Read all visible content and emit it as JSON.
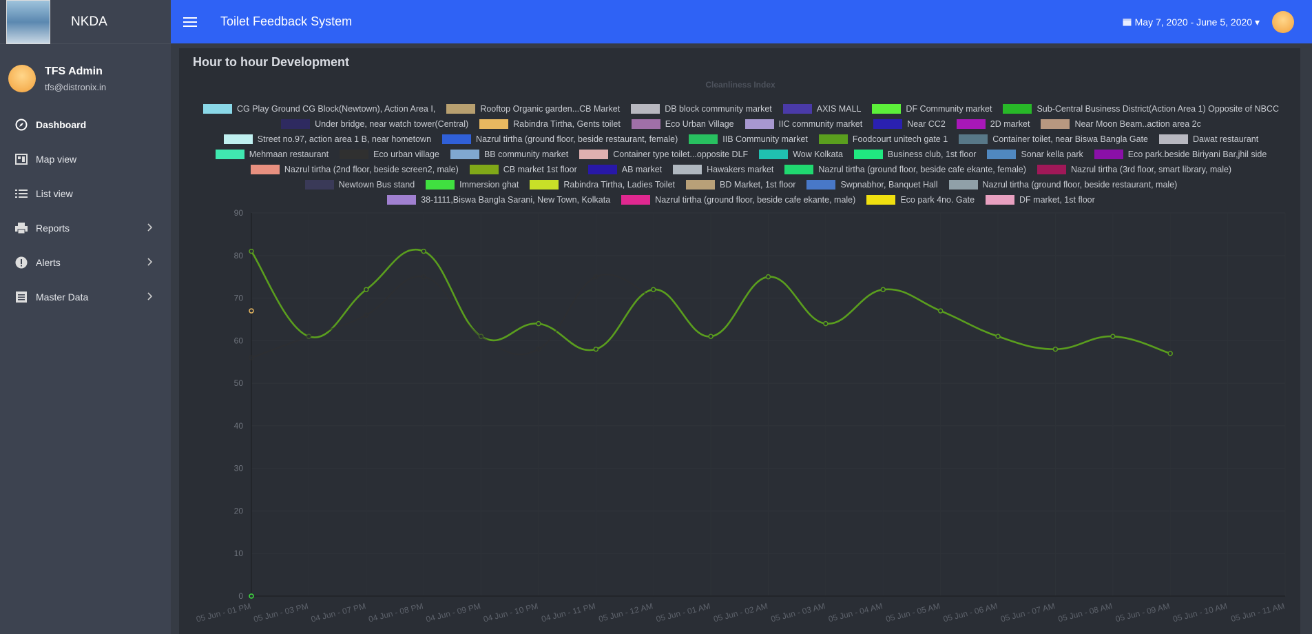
{
  "sidebar": {
    "brand": "NKDA",
    "user": {
      "name": "TFS Admin",
      "email": "tfs@distronix.in"
    },
    "nav": [
      "Dashboard",
      "Map view",
      "List view",
      "Reports",
      "Alerts",
      "Master Data"
    ]
  },
  "header": {
    "title": "Toilet Feedback System",
    "date_range": "May 7, 2020 - June 5, 2020"
  },
  "card": {
    "title": "Hour to hour Development"
  },
  "chart_data": {
    "type": "line",
    "title": "Cleanliness Index",
    "categories": [
      "05 Jun - 01 PM",
      "05 Jun - 03 PM",
      "04 Jun - 07 PM",
      "04 Jun - 08 PM",
      "04 Jun - 09 PM",
      "04 Jun - 10 PM",
      "04 Jun - 11 PM",
      "05 Jun - 12 AM",
      "05 Jun - 01 AM",
      "05 Jun - 02 AM",
      "05 Jun - 03 AM",
      "05 Jun - 04 AM",
      "05 Jun - 05 AM",
      "05 Jun - 06 AM",
      "05 Jun - 07 AM",
      "05 Jun - 08 AM",
      "05 Jun - 09 AM",
      "05 Jun - 10 AM",
      "05 Jun - 11 AM"
    ],
    "ylim": [
      0,
      90
    ],
    "yticks": [
      0,
      10,
      20,
      30,
      40,
      50,
      60,
      70,
      80,
      90
    ],
    "grid": true,
    "series": [
      {
        "name": "CG Play Ground CG Block(Newtown), Action Area I,",
        "color": "#8ad8e8",
        "values": [
          null,
          null,
          null,
          null,
          null,
          null,
          null,
          null,
          null,
          null,
          null,
          null,
          null,
          null,
          null,
          null,
          null,
          null,
          null
        ]
      },
      {
        "name": "Rooftop Organic garden...CB Market",
        "color": "#b8a070",
        "values": [
          null,
          null,
          null,
          null,
          null,
          null,
          null,
          null,
          null,
          null,
          null,
          null,
          null,
          null,
          null,
          null,
          null,
          null,
          null
        ]
      },
      {
        "name": "DB block community market",
        "color": "#b8b8c0",
        "values": [
          null,
          null,
          null,
          null,
          null,
          null,
          null,
          null,
          null,
          null,
          null,
          null,
          null,
          null,
          null,
          null,
          null,
          null,
          null
        ]
      },
      {
        "name": "AXIS MALL",
        "color": "#4a3aa8",
        "values": [
          null,
          null,
          null,
          null,
          null,
          null,
          null,
          null,
          null,
          null,
          null,
          null,
          null,
          null,
          null,
          null,
          null,
          null,
          null
        ]
      },
      {
        "name": "DF Community market",
        "color": "#5cf03a",
        "values": [
          null,
          null,
          null,
          null,
          null,
          null,
          null,
          null,
          null,
          null,
          null,
          null,
          null,
          null,
          null,
          null,
          null,
          null,
          null
        ]
      },
      {
        "name": "Sub-Central Business District(Action Area 1) Opposite of NBCC",
        "color": "#28b828",
        "values": [
          null,
          null,
          null,
          null,
          null,
          null,
          null,
          null,
          null,
          null,
          null,
          null,
          null,
          null,
          null,
          null,
          null,
          null,
          null
        ]
      },
      {
        "name": "Under bridge, near watch tower(Central)",
        "color": "#2e2a60",
        "values": [
          null,
          null,
          null,
          null,
          null,
          null,
          null,
          null,
          null,
          null,
          null,
          null,
          null,
          null,
          null,
          null,
          null,
          null,
          null
        ]
      },
      {
        "name": "Rabindra Tirtha, Gents toilet",
        "color": "#e8b860",
        "values": [
          67,
          null,
          null,
          null,
          null,
          null,
          null,
          null,
          null,
          null,
          null,
          null,
          null,
          null,
          null,
          null,
          null,
          null,
          null
        ]
      },
      {
        "name": "Eco Urban Village",
        "color": "#a070a8",
        "values": [
          null,
          null,
          null,
          null,
          null,
          null,
          null,
          null,
          null,
          null,
          null,
          null,
          null,
          null,
          null,
          null,
          null,
          null,
          null
        ]
      },
      {
        "name": "IIC community market",
        "color": "#a898d0",
        "values": [
          null,
          null,
          null,
          null,
          null,
          null,
          null,
          null,
          null,
          null,
          null,
          null,
          null,
          null,
          null,
          null,
          null,
          null,
          null
        ]
      },
      {
        "name": "Near CC2",
        "color": "#2a20b0",
        "values": [
          null,
          null,
          null,
          null,
          null,
          null,
          null,
          null,
          null,
          null,
          null,
          null,
          null,
          null,
          null,
          null,
          null,
          null,
          null
        ]
      },
      {
        "name": "2D market",
        "color": "#a818b8",
        "values": [
          null,
          null,
          null,
          null,
          null,
          null,
          null,
          null,
          null,
          null,
          null,
          null,
          null,
          null,
          null,
          null,
          null,
          null,
          null
        ]
      },
      {
        "name": "Near Moon Beam..action area 2c",
        "color": "#b89880",
        "values": [
          null,
          null,
          null,
          null,
          null,
          null,
          null,
          null,
          null,
          null,
          null,
          null,
          null,
          null,
          null,
          null,
          null,
          null,
          null
        ]
      },
      {
        "name": "Street no.97,  action area 1 B, near hometown",
        "color": "#c0f0f0",
        "values": [
          null,
          null,
          null,
          null,
          null,
          null,
          null,
          null,
          null,
          null,
          null,
          null,
          null,
          null,
          null,
          null,
          null,
          null,
          null
        ]
      },
      {
        "name": "Nazrul tirtha (ground floor, beside restaurant, female)",
        "color": "#3060d8",
        "values": [
          null,
          null,
          null,
          null,
          null,
          null,
          null,
          null,
          null,
          null,
          null,
          null,
          null,
          null,
          null,
          null,
          null,
          null,
          null
        ]
      },
      {
        "name": "IIB Community market",
        "color": "#28c060",
        "values": [
          null,
          null,
          null,
          null,
          null,
          null,
          null,
          null,
          null,
          null,
          null,
          null,
          null,
          null,
          null,
          null,
          null,
          null,
          null
        ]
      },
      {
        "name": "Foodcourt unitech gate 1",
        "color": "#5a9e1e",
        "values": [
          81,
          61,
          72,
          81,
          61,
          64,
          58,
          72,
          61,
          75,
          64,
          72,
          67,
          61,
          58,
          61,
          57,
          null,
          null
        ]
      },
      {
        "name": "Container toilet, near Biswa Bangla Gate",
        "color": "#587888",
        "values": [
          null,
          null,
          null,
          null,
          null,
          null,
          null,
          null,
          null,
          null,
          null,
          null,
          null,
          null,
          null,
          null,
          null,
          null,
          null
        ]
      },
      {
        "name": "Dawat restaurant",
        "color": "#b8b8c0",
        "values": [
          null,
          null,
          null,
          null,
          null,
          null,
          null,
          null,
          null,
          null,
          null,
          null,
          null,
          null,
          null,
          null,
          null,
          null,
          null
        ]
      },
      {
        "name": "Mehmaan restaurant",
        "color": "#40e8b0",
        "values": [
          null,
          null,
          null,
          null,
          null,
          null,
          null,
          null,
          null,
          null,
          null,
          null,
          null,
          null,
          null,
          null,
          null,
          null,
          null
        ]
      },
      {
        "name": "Eco urban village",
        "color": "#303030",
        "values": [
          56,
          61,
          66,
          75,
          61,
          58,
          75,
          70,
          null,
          null,
          null,
          null,
          null,
          null,
          null,
          null,
          null,
          null,
          null
        ]
      },
      {
        "name": "BB community market",
        "color": "#80a8d0",
        "values": [
          null,
          null,
          null,
          null,
          null,
          null,
          null,
          null,
          null,
          null,
          null,
          null,
          null,
          null,
          null,
          null,
          null,
          null,
          null
        ]
      },
      {
        "name": "Container type toilet...opposite DLF",
        "color": "#e0b0b0",
        "values": [
          null,
          null,
          null,
          null,
          null,
          null,
          null,
          null,
          null,
          null,
          null,
          null,
          null,
          null,
          null,
          null,
          null,
          null,
          null
        ]
      },
      {
        "name": "Wow Kolkata",
        "color": "#20c0b0",
        "values": [
          null,
          null,
          null,
          null,
          null,
          null,
          null,
          null,
          null,
          null,
          null,
          null,
          null,
          null,
          null,
          null,
          null,
          null,
          null
        ]
      },
      {
        "name": "Business club, 1st floor",
        "color": "#20e880",
        "values": [
          null,
          null,
          null,
          null,
          null,
          null,
          null,
          null,
          null,
          null,
          null,
          null,
          null,
          null,
          null,
          null,
          null,
          null,
          null
        ]
      },
      {
        "name": "Sonar kella park",
        "color": "#5088c0",
        "values": [
          null,
          null,
          null,
          null,
          null,
          null,
          null,
          null,
          null,
          null,
          null,
          null,
          null,
          null,
          null,
          null,
          null,
          null,
          null
        ]
      },
      {
        "name": "Eco park.beside Biriyani Bar,jhil side",
        "color": "#8a10a8",
        "values": [
          null,
          null,
          null,
          null,
          null,
          null,
          null,
          null,
          null,
          null,
          null,
          null,
          null,
          null,
          null,
          null,
          null,
          null,
          null
        ]
      },
      {
        "name": "Nazrul tirtha (2nd floor, beside screen2, male)",
        "color": "#e89080",
        "values": [
          null,
          null,
          null,
          null,
          null,
          null,
          null,
          null,
          null,
          null,
          null,
          null,
          null,
          null,
          null,
          null,
          null,
          null,
          null
        ]
      },
      {
        "name": "CB market 1st floor",
        "color": "#80a818",
        "values": [
          null,
          null,
          null,
          null,
          null,
          null,
          null,
          null,
          null,
          null,
          null,
          null,
          null,
          null,
          null,
          null,
          null,
          null,
          null
        ]
      },
      {
        "name": "AB market",
        "color": "#2818a8",
        "values": [
          null,
          null,
          null,
          null,
          null,
          null,
          null,
          null,
          null,
          null,
          null,
          null,
          null,
          null,
          null,
          null,
          null,
          null,
          null
        ]
      },
      {
        "name": "Hawakers market",
        "color": "#b0b8c0",
        "values": [
          null,
          null,
          null,
          null,
          null,
          null,
          null,
          null,
          null,
          null,
          null,
          null,
          null,
          null,
          null,
          null,
          null,
          null,
          null
        ]
      },
      {
        "name": "Nazrul tirtha (ground floor, beside cafe ekante, female)",
        "color": "#20d870",
        "values": [
          null,
          null,
          null,
          null,
          null,
          null,
          null,
          null,
          null,
          null,
          null,
          null,
          null,
          null,
          null,
          null,
          null,
          null,
          null
        ]
      },
      {
        "name": "Nazrul tirtha (3rd floor, smart library,  male)",
        "color": "#a01858",
        "values": [
          null,
          null,
          null,
          null,
          null,
          null,
          null,
          null,
          null,
          null,
          null,
          null,
          null,
          null,
          null,
          null,
          null,
          null,
          null
        ]
      },
      {
        "name": "Newtown Bus stand",
        "color": "#3a3a58",
        "values": [
          null,
          null,
          null,
          null,
          null,
          null,
          null,
          null,
          null,
          null,
          null,
          null,
          null,
          null,
          null,
          null,
          null,
          null,
          null
        ]
      },
      {
        "name": "Immersion ghat",
        "color": "#40e040",
        "values": [
          0,
          null,
          null,
          null,
          null,
          null,
          null,
          null,
          null,
          null,
          null,
          null,
          null,
          null,
          null,
          null,
          null,
          null,
          null
        ]
      },
      {
        "name": "Rabindra Tirtha,  Ladies Toilet",
        "color": "#c8e028",
        "values": [
          null,
          null,
          null,
          null,
          null,
          null,
          null,
          null,
          null,
          null,
          null,
          null,
          null,
          null,
          null,
          null,
          null,
          null,
          null
        ]
      },
      {
        "name": "BD Market,  1st floor",
        "color": "#b8a078",
        "values": [
          null,
          null,
          null,
          null,
          null,
          null,
          null,
          null,
          null,
          null,
          null,
          null,
          null,
          null,
          null,
          null,
          null,
          null,
          null
        ]
      },
      {
        "name": "Swpnabhor, Banquet Hall",
        "color": "#4878c8",
        "values": [
          null,
          null,
          null,
          null,
          null,
          null,
          null,
          null,
          null,
          null,
          null,
          null,
          null,
          null,
          null,
          null,
          null,
          null,
          null
        ]
      },
      {
        "name": "Nazrul tirtha (ground floor, beside restaurant, male)",
        "color": "#90a0a8",
        "values": [
          null,
          null,
          null,
          null,
          null,
          null,
          null,
          null,
          null,
          null,
          null,
          null,
          null,
          null,
          null,
          null,
          null,
          null,
          null
        ]
      },
      {
        "name": "38-1111,Biswa Bangla Sarani, New Town, Kolkata",
        "color": "#a080d0",
        "values": [
          null,
          null,
          null,
          null,
          null,
          null,
          null,
          null,
          null,
          null,
          null,
          null,
          null,
          null,
          null,
          null,
          null,
          null,
          null
        ]
      },
      {
        "name": "Nazrul tirtha (ground floor, beside cafe ekante, male)",
        "color": "#e02890",
        "values": [
          null,
          null,
          null,
          null,
          null,
          null,
          null,
          null,
          null,
          null,
          null,
          null,
          null,
          null,
          null,
          null,
          null,
          null,
          null
        ]
      },
      {
        "name": "Eco park 4no. Gate",
        "color": "#f0e010",
        "values": [
          null,
          null,
          null,
          null,
          null,
          null,
          null,
          null,
          null,
          null,
          null,
          null,
          null,
          null,
          null,
          null,
          null,
          null,
          null
        ]
      },
      {
        "name": "DF market, 1st floor",
        "color": "#e8a0c0",
        "values": [
          null,
          null,
          null,
          null,
          null,
          null,
          null,
          null,
          null,
          null,
          null,
          null,
          null,
          null,
          null,
          null,
          null,
          null,
          null
        ]
      }
    ]
  }
}
